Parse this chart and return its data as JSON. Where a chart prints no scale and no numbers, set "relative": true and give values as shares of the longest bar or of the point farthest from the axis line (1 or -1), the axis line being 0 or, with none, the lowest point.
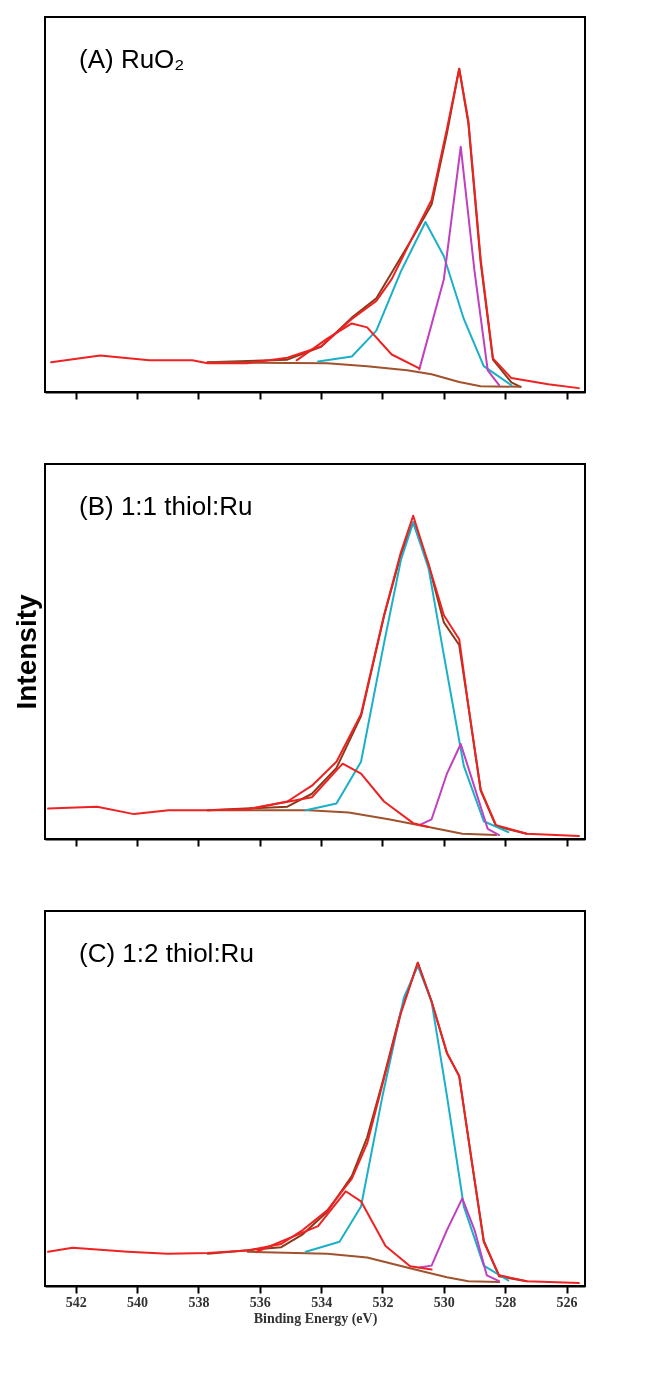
{
  "chart_data": [
    {
      "type": "line",
      "title": "(A) RuO₂",
      "relative": true,
      "tick_labels": false,
      "xlim": [
        543,
        525.4
      ],
      "xticks": [
        542,
        540,
        538,
        536,
        534,
        532,
        530,
        528,
        526
      ],
      "series": [
        {
          "color": "#8b3a1a",
          "x": [
            537.7,
            535.1,
            534.0,
            533.0,
            532.2,
            531.0,
            530.4,
            529.9,
            529.5,
            529.2,
            528.8,
            528.4,
            527.8,
            527.5
          ],
          "values": [
            0.092,
            0.1,
            0.14,
            0.23,
            0.29,
            0.48,
            0.58,
            0.8,
            1.0,
            0.83,
            0.4,
            0.1,
            0.03,
            0.016
          ]
        },
        {
          "color": "#a0522d",
          "x": [
            537.7,
            533.8,
            532.5,
            531.2,
            530.4,
            529.5,
            528.8,
            527.5
          ],
          "values": [
            0.092,
            0.089,
            0.08,
            0.067,
            0.055,
            0.031,
            0.018,
            0.016
          ]
        },
        {
          "color": "#1ab0c8",
          "x": [
            534.1,
            533.0,
            532.2,
            531.4,
            530.6,
            530.0,
            529.35,
            528.7,
            527.8
          ],
          "values": [
            0.094,
            0.11,
            0.19,
            0.373,
            0.526,
            0.42,
            0.226,
            0.08,
            0.021
          ]
        },
        {
          "color": "#c040c0",
          "x": [
            530.8,
            530.0,
            529.45,
            529.0,
            528.57,
            528.2
          ],
          "values": [
            0.07,
            0.349,
            0.759,
            0.373,
            0.067,
            0.021
          ]
        },
        {
          "color": "#ee2222",
          "x": [
            534.8,
            533.8,
            533.0,
            532.5,
            531.7,
            530.8
          ],
          "values": [
            0.098,
            0.165,
            0.212,
            0.2,
            0.116,
            0.073
          ]
        },
        {
          "color": "#ee2222",
          "x": [
            542.8,
            541.2,
            539.6,
            538.2,
            537.7,
            536.4,
            535.1,
            534.0,
            533.0,
            532.2,
            531.7,
            531.0,
            530.4,
            529.9,
            529.5,
            529.2,
            528.8,
            528.4,
            527.8,
            526.6,
            525.6
          ],
          "values": [
            0.092,
            0.113,
            0.098,
            0.098,
            0.089,
            0.089,
            0.106,
            0.141,
            0.226,
            0.282,
            0.349,
            0.483,
            0.594,
            0.814,
            1.0,
            0.838,
            0.41,
            0.104,
            0.043,
            0.024,
            0.012
          ]
        }
      ]
    },
    {
      "type": "line",
      "title": "(B) 1:1 thiol:Ru",
      "ylabel": "Intensity",
      "relative": true,
      "tick_labels": false,
      "xlim": [
        543,
        525.4
      ],
      "xticks": [
        542,
        540,
        538,
        536,
        534,
        532,
        530,
        528,
        526
      ],
      "series": [
        {
          "color": "#8b3a1a",
          "x": [
            537.7,
            535.1,
            534.3,
            533.5,
            532.7,
            531.95,
            531.4,
            531.0,
            530.5,
            530.0,
            529.5,
            529.2,
            528.8,
            528.3,
            527.3
          ],
          "values": [
            0.089,
            0.1,
            0.14,
            0.22,
            0.38,
            0.69,
            0.88,
            0.98,
            0.85,
            0.67,
            0.6,
            0.41,
            0.15,
            0.04,
            0.016
          ]
        },
        {
          "color": "#a0522d",
          "x": [
            537.7,
            534.4,
            533.1,
            531.8,
            530.5,
            529.4,
            528.3
          ],
          "values": [
            0.089,
            0.089,
            0.082,
            0.061,
            0.037,
            0.016,
            0.012
          ]
        },
        {
          "color": "#1ab0c8",
          "x": [
            534.5,
            533.5,
            532.7,
            531.95,
            531.4,
            531.0,
            530.5,
            530.0,
            529.35,
            528.7,
            527.9
          ],
          "values": [
            0.089,
            0.11,
            0.239,
            0.606,
            0.863,
            0.979,
            0.838,
            0.569,
            0.226,
            0.055,
            0.021
          ]
        },
        {
          "color": "#c040c0",
          "x": [
            530.8,
            530.4,
            529.9,
            529.45,
            529.1,
            528.57,
            528.2
          ],
          "values": [
            0.043,
            0.061,
            0.202,
            0.294,
            0.19,
            0.031,
            0.012
          ]
        },
        {
          "color": "#ee2222",
          "x": [
            536.4,
            534.3,
            533.3,
            532.7,
            531.95,
            531.0,
            530.5
          ],
          "values": [
            0.092,
            0.129,
            0.233,
            0.202,
            0.116,
            0.049,
            0.037
          ]
        },
        {
          "color": "#ee2222",
          "x": [
            542.9,
            541.3,
            540.1,
            538.97,
            537.7,
            536.4,
            535.1,
            534.3,
            533.5,
            532.7,
            531.95,
            531.4,
            531.0,
            530.5,
            530.0,
            529.5,
            529.2,
            528.8,
            528.3,
            527.3,
            525.6
          ],
          "values": [
            0.094,
            0.1,
            0.077,
            0.089,
            0.089,
            0.092,
            0.116,
            0.165,
            0.239,
            0.386,
            0.692,
            0.887,
            1.0,
            0.85,
            0.692,
            0.618,
            0.41,
            0.153,
            0.043,
            0.016,
            0.009
          ]
        }
      ]
    },
    {
      "type": "line",
      "title": "(C) 1:2 thiol:Ru",
      "xlabel": "Binding Energy (eV)",
      "relative": true,
      "tick_labels": "x",
      "xlim": [
        543,
        525.4
      ],
      "xticks": [
        542,
        540,
        538,
        536,
        534,
        532,
        530,
        528,
        526
      ],
      "series": [
        {
          "color": "#8b3a1a",
          "x": [
            537.7,
            535.3,
            534.6,
            533.8,
            533.0,
            532.5,
            532.0,
            531.4,
            530.85,
            530.4,
            529.9,
            529.5,
            529.1,
            528.7,
            528.2,
            527.3
          ],
          "values": [
            0.1,
            0.12,
            0.16,
            0.23,
            0.34,
            0.46,
            0.63,
            0.85,
            1.0,
            0.88,
            0.72,
            0.65,
            0.39,
            0.14,
            0.03,
            0.015
          ]
        },
        {
          "color": "#a0522d",
          "x": [
            536.4,
            533.8,
            532.5,
            531.2,
            529.9,
            529.2,
            528.2
          ],
          "values": [
            0.106,
            0.1,
            0.088,
            0.057,
            0.027,
            0.015,
            0.012
          ]
        },
        {
          "color": "#1ab0c8",
          "x": [
            534.5,
            533.4,
            532.7,
            532.0,
            531.3,
            530.85,
            530.4,
            529.9,
            529.35,
            528.7,
            527.9
          ],
          "values": [
            0.106,
            0.137,
            0.246,
            0.588,
            0.893,
            0.99,
            0.88,
            0.588,
            0.246,
            0.063,
            0.017
          ]
        },
        {
          "color": "#c040c0",
          "x": [
            530.8,
            530.4,
            529.9,
            529.4,
            529.0,
            528.6,
            528.2
          ],
          "values": [
            0.057,
            0.063,
            0.173,
            0.271,
            0.173,
            0.033,
            0.015
          ]
        },
        {
          "color": "#ee2222",
          "x": [
            536.1,
            534.1,
            533.2,
            532.7,
            531.9,
            531.1,
            530.4
          ],
          "values": [
            0.106,
            0.185,
            0.293,
            0.262,
            0.124,
            0.061,
            0.051
          ]
        },
        {
          "color": "#ee2222",
          "x": [
            542.9,
            542.1,
            540.3,
            539.0,
            537.7,
            536.4,
            535.3,
            534.6,
            533.8,
            533.0,
            532.5,
            532.0,
            531.4,
            530.85,
            530.4,
            529.9,
            529.5,
            529.1,
            528.7,
            528.2,
            527.3,
            525.6
          ],
          "values": [
            0.106,
            0.118,
            0.106,
            0.1,
            0.102,
            0.11,
            0.13,
            0.173,
            0.234,
            0.332,
            0.441,
            0.624,
            0.844,
            1.0,
            0.88,
            0.722,
            0.649,
            0.393,
            0.137,
            0.033,
            0.015,
            0.009
          ]
        }
      ]
    }
  ]
}
